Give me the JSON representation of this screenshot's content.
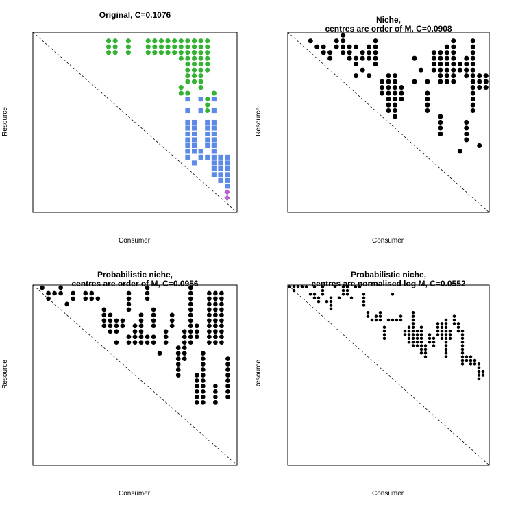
{
  "chart_data": [
    {
      "type": "scatter",
      "title": "Original, C=0.1076",
      "xlabel": "Consumer",
      "ylabel": "Resource",
      "n": 30,
      "diagonal": true,
      "colors": {
        "green": "#33b233",
        "blue": "#5c8ae6",
        "purple": "#b266cc"
      },
      "series": [
        {
          "shape": "circle",
          "color": "green",
          "points": [
            [
              12,
              2
            ],
            [
              12,
              3
            ],
            [
              12,
              4
            ],
            [
              13,
              2
            ],
            [
              13,
              3
            ],
            [
              13,
              4
            ],
            [
              15,
              2
            ],
            [
              15,
              3
            ],
            [
              15,
              4
            ],
            [
              18,
              2
            ],
            [
              18,
              3
            ],
            [
              18,
              4
            ],
            [
              19,
              2
            ],
            [
              19,
              3
            ],
            [
              19,
              4
            ],
            [
              20,
              2
            ],
            [
              20,
              3
            ],
            [
              20,
              4
            ],
            [
              21,
              2
            ],
            [
              21,
              3
            ],
            [
              21,
              4
            ],
            [
              22,
              2
            ],
            [
              22,
              3
            ],
            [
              22,
              4
            ],
            [
              23,
              2
            ],
            [
              23,
              3
            ],
            [
              23,
              4
            ],
            [
              24,
              2
            ],
            [
              24,
              3
            ],
            [
              24,
              4
            ],
            [
              25,
              2
            ],
            [
              25,
              3
            ],
            [
              25,
              4
            ],
            [
              23,
              5
            ],
            [
              24,
              5
            ],
            [
              24,
              6
            ],
            [
              24,
              7
            ],
            [
              24,
              8
            ],
            [
              24,
              9
            ],
            [
              25,
              2
            ],
            [
              25,
              3
            ],
            [
              25,
              4
            ],
            [
              25,
              5
            ],
            [
              25,
              6
            ],
            [
              25,
              7
            ],
            [
              25,
              8
            ],
            [
              25,
              9
            ],
            [
              26,
              2
            ],
            [
              26,
              3
            ],
            [
              26,
              4
            ],
            [
              26,
              5
            ],
            [
              26,
              6
            ],
            [
              26,
              7
            ],
            [
              26,
              8
            ],
            [
              26,
              9
            ],
            [
              26,
              10
            ],
            [
              27,
              2
            ],
            [
              27,
              3
            ],
            [
              27,
              4
            ],
            [
              27,
              5
            ],
            [
              27,
              6
            ],
            [
              27,
              7
            ],
            [
              23,
              10
            ],
            [
              23,
              11
            ],
            [
              24,
              11
            ],
            [
              27,
              12
            ],
            [
              28,
              12
            ],
            [
              27,
              13
            ],
            [
              27,
              14
            ],
            [
              28,
              11
            ]
          ]
        },
        {
          "shape": "square",
          "color": "blue",
          "points": [
            [
              24,
              12
            ],
            [
              26,
              12
            ],
            [
              28,
              12
            ],
            [
              24,
              14
            ],
            [
              26,
              14
            ],
            [
              28,
              14
            ],
            [
              24,
              16
            ],
            [
              24,
              17
            ],
            [
              24,
              18
            ],
            [
              24,
              19
            ],
            [
              24,
              20
            ],
            [
              24,
              21
            ],
            [
              25,
              16
            ],
            [
              25,
              17
            ],
            [
              25,
              18
            ],
            [
              25,
              19
            ],
            [
              25,
              20
            ],
            [
              25,
              21
            ],
            [
              27,
              16
            ],
            [
              27,
              17
            ],
            [
              27,
              18
            ],
            [
              27,
              19
            ],
            [
              27,
              20
            ],
            [
              28,
              16
            ],
            [
              28,
              17
            ],
            [
              28,
              18
            ],
            [
              28,
              19
            ],
            [
              28,
              20
            ],
            [
              28,
              21
            ],
            [
              26,
              21
            ],
            [
              26,
              22
            ],
            [
              24,
              22
            ],
            [
              25,
              23
            ],
            [
              27,
              22
            ],
            [
              28,
              22
            ],
            [
              28,
              23
            ],
            [
              28,
              24
            ],
            [
              28,
              25
            ],
            [
              29,
              22
            ],
            [
              29,
              23
            ],
            [
              29,
              24
            ],
            [
              29,
              25
            ],
            [
              29,
              26
            ],
            [
              30,
              22
            ],
            [
              30,
              23
            ],
            [
              30,
              24
            ],
            [
              30,
              25
            ],
            [
              30,
              26
            ],
            [
              30,
              27
            ]
          ]
        },
        {
          "shape": "diamond",
          "color": "purple",
          "points": [
            [
              30,
              28
            ],
            [
              30,
              29
            ]
          ]
        }
      ]
    },
    {
      "type": "scatter",
      "title": "Niche,\ncentres are order of M, C=0.0908",
      "xlabel": "Consumer",
      "ylabel": "Resource",
      "n": 30,
      "diagonal": true,
      "series": [
        {
          "shape": "circle",
          "color": "black",
          "points": [
            [
              4,
              2
            ],
            [
              5,
              3
            ],
            [
              6,
              3
            ],
            [
              6,
              4
            ],
            [
              7,
              4
            ],
            [
              7,
              5
            ],
            [
              8,
              3
            ],
            [
              8,
              2
            ],
            [
              9,
              2
            ],
            [
              9,
              3
            ],
            [
              9,
              4
            ],
            [
              9,
              1
            ],
            [
              10,
              3
            ],
            [
              10,
              4
            ],
            [
              10,
              5
            ],
            [
              11,
              5
            ],
            [
              11,
              6
            ],
            [
              11,
              3
            ],
            [
              12,
              4
            ],
            [
              12,
              5
            ],
            [
              13,
              3
            ],
            [
              13,
              4
            ],
            [
              13,
              5
            ],
            [
              14,
              2
            ],
            [
              14,
              3
            ],
            [
              14,
              4
            ],
            [
              14,
              5
            ],
            [
              14,
              6
            ],
            [
              12,
              7
            ],
            [
              11,
              8
            ],
            [
              13,
              8
            ],
            [
              15,
              9
            ],
            [
              15,
              10
            ],
            [
              15,
              11
            ],
            [
              16,
              8
            ],
            [
              16,
              9
            ],
            [
              16,
              10
            ],
            [
              16,
              11
            ],
            [
              16,
              12
            ],
            [
              16,
              13
            ],
            [
              16,
              14
            ],
            [
              17,
              8
            ],
            [
              17,
              9
            ],
            [
              17,
              10
            ],
            [
              17,
              11
            ],
            [
              17,
              12
            ],
            [
              17,
              13
            ],
            [
              17,
              14
            ],
            [
              17,
              15
            ],
            [
              18,
              10
            ],
            [
              18,
              11
            ],
            [
              18,
              12
            ],
            [
              20,
              5
            ],
            [
              20,
              9
            ],
            [
              21,
              7
            ],
            [
              22,
              9
            ],
            [
              22,
              11
            ],
            [
              22,
              12
            ],
            [
              22,
              13
            ],
            [
              22,
              14
            ],
            [
              23,
              5
            ],
            [
              23,
              4
            ],
            [
              23,
              6
            ],
            [
              23,
              7
            ],
            [
              24,
              4
            ],
            [
              24,
              5
            ],
            [
              24,
              6
            ],
            [
              24,
              7
            ],
            [
              24,
              8
            ],
            [
              24,
              9
            ],
            [
              25,
              3
            ],
            [
              25,
              4
            ],
            [
              25,
              5
            ],
            [
              25,
              6
            ],
            [
              25,
              7
            ],
            [
              25,
              8
            ],
            [
              25,
              9
            ],
            [
              26,
              2
            ],
            [
              26,
              3
            ],
            [
              26,
              4
            ],
            [
              26,
              5
            ],
            [
              26,
              6
            ],
            [
              26,
              7
            ],
            [
              26,
              8
            ],
            [
              26,
              9
            ],
            [
              27,
              6
            ],
            [
              27,
              7
            ],
            [
              28,
              7
            ],
            [
              28,
              8
            ],
            [
              29,
              2
            ],
            [
              29,
              3
            ],
            [
              29,
              4
            ],
            [
              29,
              5
            ],
            [
              29,
              6
            ],
            [
              29,
              7
            ],
            [
              29,
              8
            ],
            [
              29,
              9
            ],
            [
              29,
              10
            ],
            [
              29,
              11
            ],
            [
              29,
              12
            ],
            [
              29,
              13
            ],
            [
              29,
              14
            ],
            [
              28,
              5
            ],
            [
              28,
              6
            ],
            [
              28,
              7
            ],
            [
              30,
              8
            ],
            [
              30,
              9
            ],
            [
              30,
              10
            ],
            [
              31,
              8
            ],
            [
              31,
              9
            ],
            [
              31,
              10
            ],
            [
              24,
              15
            ],
            [
              24,
              16
            ],
            [
              24,
              17
            ],
            [
              24,
              18
            ],
            [
              28,
              16
            ],
            [
              28,
              17
            ],
            [
              28,
              18
            ],
            [
              28,
              19
            ],
            [
              27,
              21
            ],
            [
              30,
              20
            ]
          ]
        }
      ]
    },
    {
      "type": "scatter",
      "title": "Probabilistic niche,\ncentres are order of M, C=0.0956",
      "xlabel": "Consumer",
      "ylabel": "Resource",
      "n": 30,
      "diagonal": true,
      "series": [
        {
          "shape": "circle",
          "color": "black",
          "points": []
        }
      ]
    },
    {
      "type": "scatter",
      "title": "Probabilistic niche,\ncentres are normalised log M, C=0.0552",
      "xlabel": "Consumer",
      "ylabel": "Resource",
      "n": 30,
      "diagonal": true,
      "series": [
        {
          "shape": "circle",
          "color": "black",
          "points": []
        }
      ]
    }
  ]
}
